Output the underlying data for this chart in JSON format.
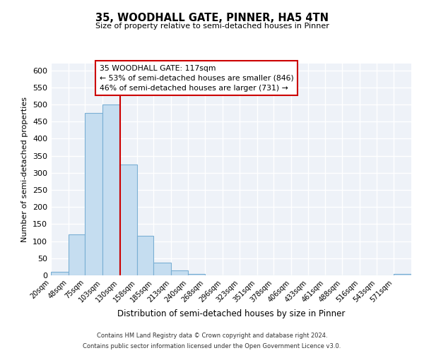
{
  "title": "35, WOODHALL GATE, PINNER, HA5 4TN",
  "subtitle": "Size of property relative to semi-detached houses in Pinner",
  "xlabel": "Distribution of semi-detached houses by size in Pinner",
  "ylabel": "Number of semi-detached properties",
  "bin_labels": [
    "20sqm",
    "48sqm",
    "75sqm",
    "103sqm",
    "130sqm",
    "158sqm",
    "185sqm",
    "213sqm",
    "240sqm",
    "268sqm",
    "296sqm",
    "323sqm",
    "351sqm",
    "378sqm",
    "406sqm",
    "433sqm",
    "461sqm",
    "488sqm",
    "516sqm",
    "543sqm",
    "571sqm"
  ],
  "bar_heights": [
    10,
    120,
    475,
    500,
    325,
    115,
    38,
    15,
    5,
    1,
    1,
    0,
    0,
    0,
    0,
    0,
    0,
    0,
    0,
    0,
    5
  ],
  "bar_color": "#c5ddf0",
  "bar_edge_color": "#7aafd4",
  "bg_color": "#eef2f8",
  "grid_color": "#ffffff",
  "vline_x": 117,
  "vline_color": "#cc0000",
  "annotation_text_line1": "35 WOODHALL GATE: 117sqm",
  "annotation_text_line2": "← 53% of semi-detached houses are smaller (846)",
  "annotation_text_line3": "46% of semi-detached houses are larger (731) →",
  "annotation_box_color": "#cc0000",
  "ylim": [
    0,
    620
  ],
  "yticks": [
    0,
    50,
    100,
    150,
    200,
    250,
    300,
    350,
    400,
    450,
    500,
    550,
    600
  ],
  "footnote_line1": "Contains HM Land Registry data © Crown copyright and database right 2024.",
  "footnote_line2": "Contains public sector information licensed under the Open Government Licence v3.0.",
  "bin_edges": [
    6,
    34,
    61,
    89,
    116,
    144,
    171,
    199,
    226,
    254,
    282,
    309,
    337,
    364,
    392,
    419,
    447,
    474,
    502,
    529,
    557,
    585
  ]
}
